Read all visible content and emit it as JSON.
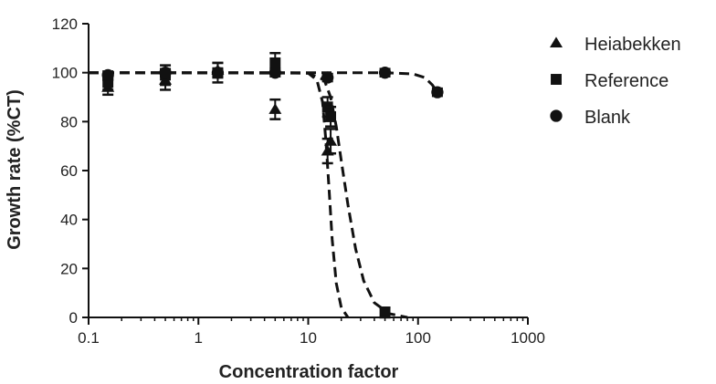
{
  "chart_data": {
    "type": "scatter",
    "xscale": "log",
    "xlabel": "Concentration factor",
    "ylabel": "Growth rate (%CT)",
    "xlim": [
      0.1,
      1000
    ],
    "ylim": [
      0,
      120
    ],
    "xticks": [
      {
        "value": 0.1,
        "label": "0.1"
      },
      {
        "value": 1,
        "label": "1"
      },
      {
        "value": 10,
        "label": "10"
      },
      {
        "value": 100,
        "label": "100"
      },
      {
        "value": 1000,
        "label": "1000"
      }
    ],
    "yticks": [
      {
        "value": 0,
        "label": "0"
      },
      {
        "value": 20,
        "label": "20"
      },
      {
        "value": 40,
        "label": "40"
      },
      {
        "value": 60,
        "label": "60"
      },
      {
        "value": 80,
        "label": "80"
      },
      {
        "value": 100,
        "label": "100"
      },
      {
        "value": 120,
        "label": "120"
      }
    ],
    "grid": false,
    "legend_position": "right",
    "series": [
      {
        "name": "Heiabekken",
        "marker": "triangle",
        "color": "#111111",
        "points": [
          {
            "x": 0.15,
            "y": 94,
            "err": 3
          },
          {
            "x": 0.5,
            "y": 97,
            "err": 4
          },
          {
            "x": 1.5,
            "y": 101,
            "err": 3
          },
          {
            "x": 5,
            "y": 85,
            "err": 4
          },
          {
            "x": 15,
            "y": 68,
            "err": 5
          },
          {
            "x": 16,
            "y": 72,
            "err": 5
          }
        ],
        "fit": [
          {
            "x": 0.1,
            "y": 100
          },
          {
            "x": 5,
            "y": 100
          },
          {
            "x": 10,
            "y": 99.8
          },
          {
            "x": 12,
            "y": 97
          },
          {
            "x": 13.5,
            "y": 88
          },
          {
            "x": 14.5,
            "y": 72
          },
          {
            "x": 15.5,
            "y": 52
          },
          {
            "x": 16.5,
            "y": 32
          },
          {
            "x": 18,
            "y": 14
          },
          {
            "x": 20,
            "y": 4
          },
          {
            "x": 23,
            "y": 0
          }
        ]
      },
      {
        "name": "Reference",
        "marker": "square",
        "color": "#111111",
        "points": [
          {
            "x": 0.15,
            "y": 96,
            "err": 3
          },
          {
            "x": 0.5,
            "y": 99,
            "err": 4
          },
          {
            "x": 1.5,
            "y": 100,
            "err": 4
          },
          {
            "x": 5,
            "y": 104,
            "err": 4
          },
          {
            "x": 15,
            "y": 86,
            "err": 4
          },
          {
            "x": 16,
            "y": 82,
            "err": 4
          },
          {
            "x": 50,
            "y": 2,
            "err": 2
          }
        ],
        "fit": [
          {
            "x": 0.1,
            "y": 100
          },
          {
            "x": 10,
            "y": 99.8
          },
          {
            "x": 14,
            "y": 97
          },
          {
            "x": 16,
            "y": 90
          },
          {
            "x": 18,
            "y": 78
          },
          {
            "x": 20,
            "y": 64
          },
          {
            "x": 23,
            "y": 46
          },
          {
            "x": 27,
            "y": 28
          },
          {
            "x": 32,
            "y": 15
          },
          {
            "x": 40,
            "y": 6
          },
          {
            "x": 55,
            "y": 1.5
          },
          {
            "x": 80,
            "y": 0
          }
        ]
      },
      {
        "name": "Blank",
        "marker": "circle",
        "color": "#111111",
        "points": [
          {
            "x": 0.15,
            "y": 99,
            "err": 1.5
          },
          {
            "x": 0.5,
            "y": 100,
            "err": 1.5
          },
          {
            "x": 1.5,
            "y": 100,
            "err": 1.5
          },
          {
            "x": 5,
            "y": 100,
            "err": 1.5
          },
          {
            "x": 15,
            "y": 98,
            "err": 1.5
          },
          {
            "x": 50,
            "y": 100,
            "err": 1.5
          },
          {
            "x": 150,
            "y": 92,
            "err": 1.5
          }
        ],
        "fit": [
          {
            "x": 0.1,
            "y": 100
          },
          {
            "x": 50,
            "y": 100
          },
          {
            "x": 90,
            "y": 99.5
          },
          {
            "x": 115,
            "y": 98
          },
          {
            "x": 135,
            "y": 95
          },
          {
            "x": 150,
            "y": 92
          }
        ]
      }
    ]
  }
}
